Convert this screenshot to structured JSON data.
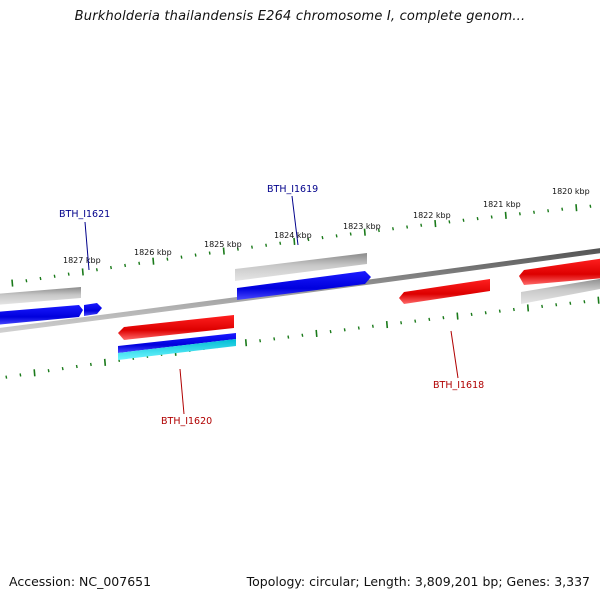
{
  "title": "Burkholderia thailandensis E264 chromosome I, complete genom...",
  "footer": {
    "accession": "Accession: NC_007651",
    "summary": "Topology: circular; Length: 3,809,201 bp; Genes: 3,337"
  },
  "colors": {
    "backbone": "#777777",
    "forward_gene": "#0000ee",
    "reverse_gene": "#ee0000",
    "neutral_gene": "#aaaaaa",
    "cyan_gene": "#00ddee",
    "tick": "#1a7a1a",
    "label_forward": "#00008b",
    "label_reverse": "#b00000"
  },
  "scale_labels": [
    "1827 kbp",
    "1826 kbp",
    "1825 kbp",
    "1824 kbp",
    "1823 kbp",
    "1822 kbp",
    "1821 kbp",
    "1820 kbp"
  ],
  "gene_labels": [
    {
      "name": "BTH_I1621",
      "strand": "forward"
    },
    {
      "name": "BTH_I1619",
      "strand": "forward"
    },
    {
      "name": "BTH_I1620",
      "strand": "reverse"
    },
    {
      "name": "BTH_I1618",
      "strand": "reverse"
    }
  ]
}
